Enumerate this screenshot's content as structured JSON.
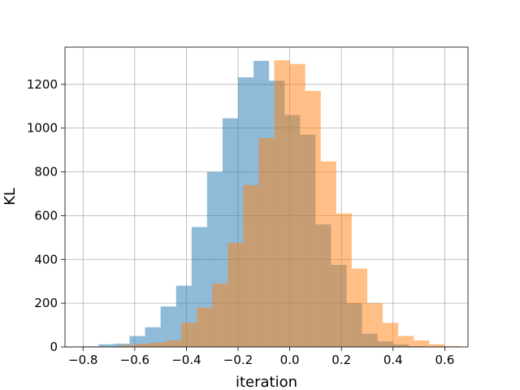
{
  "chart_data": {
    "type": "bar",
    "xlabel": "iteration",
    "ylabel": "KL",
    "xlim": [
      -0.87,
      0.69
    ],
    "ylim": [
      0,
      1370
    ],
    "xticks": [
      -0.8,
      -0.6,
      -0.4,
      -0.2,
      0.0,
      0.2,
      0.4,
      0.6
    ],
    "xtick_labels": [
      "−0.8",
      "−0.6",
      "−0.4",
      "−0.2",
      "0.0",
      "0.2",
      "0.4",
      "0.6"
    ],
    "yticks": [
      0,
      200,
      400,
      600,
      800,
      1000,
      1200
    ],
    "ytick_labels": [
      "0",
      "200",
      "400",
      "600",
      "800",
      "1000",
      "1200"
    ],
    "grid": true,
    "series": [
      {
        "color": "#1f77b4",
        "opacity": 0.5,
        "bins": [
          [
            -0.8,
            -0.74,
            3
          ],
          [
            -0.74,
            -0.68,
            12
          ],
          [
            -0.68,
            -0.62,
            15
          ],
          [
            -0.62,
            -0.56,
            50
          ],
          [
            -0.56,
            -0.5,
            90
          ],
          [
            -0.5,
            -0.44,
            185
          ],
          [
            -0.44,
            -0.38,
            280
          ],
          [
            -0.38,
            -0.32,
            548
          ],
          [
            -0.32,
            -0.26,
            800
          ],
          [
            -0.26,
            -0.2,
            1045
          ],
          [
            -0.2,
            -0.14,
            1232
          ],
          [
            -0.14,
            -0.08,
            1307
          ],
          [
            -0.08,
            -0.02,
            1217
          ],
          [
            -0.02,
            0.04,
            1060
          ],
          [
            0.04,
            0.1,
            970
          ],
          [
            0.1,
            0.16,
            560
          ],
          [
            0.16,
            0.22,
            375
          ],
          [
            0.22,
            0.28,
            200
          ],
          [
            0.28,
            0.34,
            60
          ],
          [
            0.34,
            0.4,
            25
          ],
          [
            0.4,
            0.46,
            12
          ],
          [
            0.46,
            0.52,
            3
          ]
        ]
      },
      {
        "color": "#ff7f0e",
        "opacity": 0.5,
        "bins": [
          [
            -0.66,
            -0.6,
            8
          ],
          [
            -0.6,
            -0.54,
            14
          ],
          [
            -0.54,
            -0.48,
            20
          ],
          [
            -0.48,
            -0.42,
            30
          ],
          [
            -0.42,
            -0.36,
            110
          ],
          [
            -0.36,
            -0.3,
            180
          ],
          [
            -0.3,
            -0.24,
            290
          ],
          [
            -0.24,
            -0.18,
            475
          ],
          [
            -0.18,
            -0.12,
            740
          ],
          [
            -0.12,
            -0.06,
            955
          ],
          [
            -0.06,
            0.0,
            1310
          ],
          [
            0.0,
            0.06,
            1293
          ],
          [
            0.06,
            0.12,
            1170
          ],
          [
            0.12,
            0.18,
            848
          ],
          [
            0.18,
            0.24,
            610
          ],
          [
            0.24,
            0.3,
            358
          ],
          [
            0.3,
            0.36,
            200
          ],
          [
            0.36,
            0.42,
            110
          ],
          [
            0.42,
            0.48,
            50
          ],
          [
            0.48,
            0.54,
            30
          ],
          [
            0.54,
            0.6,
            12
          ],
          [
            0.6,
            0.66,
            4
          ]
        ]
      }
    ]
  }
}
